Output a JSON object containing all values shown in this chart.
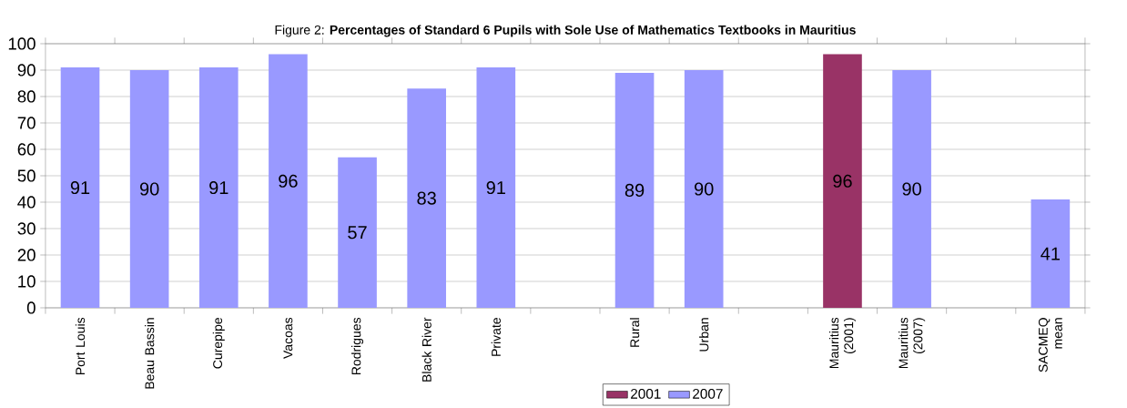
{
  "chart_data": {
    "type": "bar",
    "title": "Figure 2: **Percentages of Standard 6 Pupils with Sole Use of Mathematics Textbooks in Mauritius**",
    "categories": [
      "Port Louis",
      "Beau Bassin",
      "Curepipe",
      "Vacoas",
      "Rodrigues",
      "Black River",
      "Private",
      null,
      "Rural",
      "Urban",
      null,
      "Mauritius (2001)",
      "Mauritius (2007)",
      null,
      "SACMEQ mean"
    ],
    "series": [
      {
        "name": "2001",
        "color": "#993366",
        "values": [
          null,
          null,
          null,
          null,
          null,
          null,
          null,
          null,
          null,
          null,
          null,
          96,
          null,
          null,
          null
        ]
      },
      {
        "name": "2007",
        "color": "#9999ff",
        "values": [
          91,
          90,
          91,
          96,
          57,
          83,
          91,
          null,
          89,
          90,
          null,
          null,
          90,
          null,
          41
        ]
      }
    ],
    "ylim": [
      0,
      100
    ],
    "yticks": [
      0,
      10,
      20,
      30,
      40,
      50,
      60,
      70,
      80,
      90,
      100
    ],
    "grid": "y",
    "legend": "bottom",
    "data_labels": true
  }
}
